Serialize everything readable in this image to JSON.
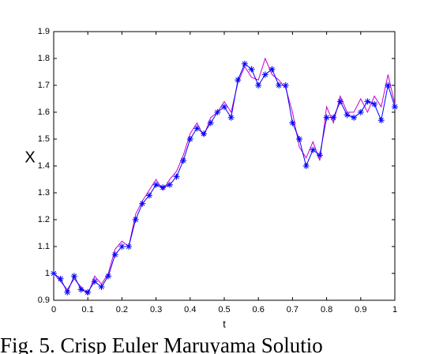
{
  "chart_data": {
    "type": "line",
    "xlabel": "t",
    "ylabel": "X",
    "caption": "Fig. 5. Crisp Euler Maruyama Solutio",
    "xlim": [
      0,
      1
    ],
    "xticks": [
      0,
      0.1,
      0.2,
      0.3,
      0.4,
      0.5,
      0.6,
      0.7,
      0.8,
      0.9,
      1
    ],
    "ylim": [
      0.9,
      1.9
    ],
    "yticks": [
      0.9,
      1,
      1.1,
      1.2,
      1.3,
      1.4,
      1.5,
      1.6,
      1.7,
      1.8,
      1.9
    ],
    "grid": false,
    "x": [
      0,
      0.02,
      0.04,
      0.06,
      0.08,
      0.1,
      0.12,
      0.14,
      0.16,
      0.18,
      0.2,
      0.22,
      0.24,
      0.26,
      0.28,
      0.3,
      0.32,
      0.34,
      0.36,
      0.38,
      0.4,
      0.42,
      0.44,
      0.46,
      0.48,
      0.5,
      0.52,
      0.54,
      0.56,
      0.58,
      0.6,
      0.62,
      0.64,
      0.66,
      0.68,
      0.7,
      0.72,
      0.74,
      0.76,
      0.78,
      0.8,
      0.82,
      0.84,
      0.86,
      0.88,
      0.9,
      0.92,
      0.94,
      0.96,
      0.98,
      1
    ],
    "series": [
      {
        "color": "#cc00cc",
        "marker": "none",
        "values": [
          1.0,
          0.97,
          0.94,
          0.98,
          0.95,
          0.92,
          0.99,
          0.96,
          1.0,
          1.09,
          1.12,
          1.1,
          1.22,
          1.27,
          1.31,
          1.35,
          1.31,
          1.35,
          1.38,
          1.44,
          1.52,
          1.56,
          1.51,
          1.58,
          1.6,
          1.64,
          1.6,
          1.71,
          1.77,
          1.73,
          1.72,
          1.8,
          1.74,
          1.72,
          1.69,
          1.6,
          1.47,
          1.43,
          1.49,
          1.42,
          1.62,
          1.56,
          1.66,
          1.6,
          1.6,
          1.65,
          1.6,
          1.66,
          1.62,
          1.74,
          1.63
        ]
      },
      {
        "color": "#0000ff",
        "marker": "star",
        "values": [
          1.0,
          0.98,
          0.93,
          0.99,
          0.94,
          0.93,
          0.97,
          0.95,
          0.99,
          1.07,
          1.1,
          1.1,
          1.2,
          1.26,
          1.29,
          1.33,
          1.32,
          1.33,
          1.36,
          1.42,
          1.5,
          1.54,
          1.52,
          1.56,
          1.6,
          1.62,
          1.58,
          1.72,
          1.78,
          1.76,
          1.7,
          1.74,
          1.76,
          1.7,
          1.7,
          1.56,
          1.5,
          1.4,
          1.46,
          1.44,
          1.58,
          1.58,
          1.64,
          1.59,
          1.58,
          1.6,
          1.64,
          1.63,
          1.57,
          1.7,
          1.62
        ]
      }
    ]
  }
}
